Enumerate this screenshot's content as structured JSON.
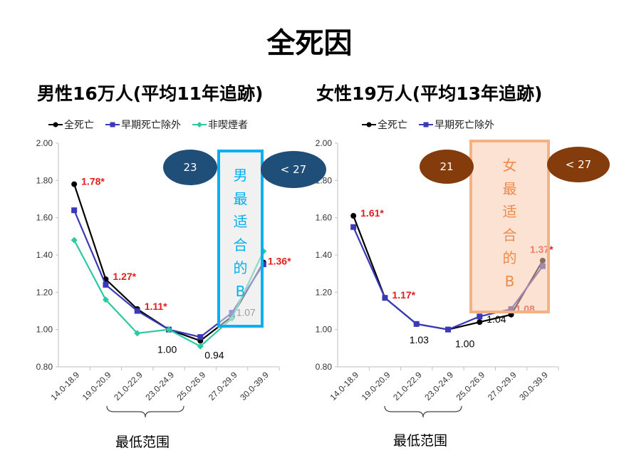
{
  "page_title": "全死因",
  "panels": [
    {
      "title": "男性16万人(平均11年追跡)"
    },
    {
      "title": "女性19万人(平均13年追跡)"
    }
  ],
  "footer": {
    "left": "最低范围",
    "right": "最低范围"
  },
  "overlays": {
    "male": {
      "bubble_left": "23",
      "bubble_right": "< 27",
      "box_chars": [
        "男",
        "最",
        "适",
        "合",
        "的",
        "B"
      ],
      "color": "#1a4a78",
      "box_color": "#00b0f0"
    },
    "female": {
      "bubble_left": "21",
      "bubble_right": "< 27",
      "box_chars": [
        "女",
        "最",
        "适",
        "合",
        "的",
        "B"
      ],
      "color": "#7a3a0c",
      "box_color": "#f4b183"
    }
  },
  "chart_data": [
    {
      "type": "line",
      "title": "男性16万人(平均11年追跡)",
      "categories": [
        "14.0-18.9",
        "19.0-20.9",
        "21.0-22.9",
        "23.0-24.9",
        "25.0-26.9",
        "27.0-29.9",
        "30.0-39.9"
      ],
      "ylim": [
        0.8,
        2.0
      ],
      "yticks": [
        "0.80",
        "1.00",
        "1.20",
        "1.40",
        "1.60",
        "1.80",
        "2.00"
      ],
      "legend_position": "top-left",
      "series": [
        {
          "name": "全死亡",
          "color": "#000000",
          "marker": "circle",
          "values": [
            1.78,
            1.27,
            1.11,
            1.0,
            0.94,
            1.07,
            1.36
          ]
        },
        {
          "name": "早期死亡除外",
          "color": "#3a3ab8",
          "marker": "square",
          "values": [
            1.64,
            1.24,
            1.1,
            1.0,
            0.96,
            1.09,
            1.35
          ]
        },
        {
          "name": "非喫煙者",
          "color": "#2dc9a3",
          "marker": "diamond",
          "values": [
            1.48,
            1.16,
            0.98,
            1.0,
            0.91,
            1.06,
            1.42
          ]
        }
      ],
      "data_labels": [
        {
          "index": 0,
          "value": 1.78,
          "text": "1.78*",
          "color": "#e02020",
          "bold": true
        },
        {
          "index": 1,
          "value": 1.27,
          "text": "1.27*",
          "color": "#e02020",
          "bold": true
        },
        {
          "index": 2,
          "value": 1.11,
          "text": "1.11*",
          "color": "#e02020",
          "bold": true
        },
        {
          "index": 3,
          "value": 1.0,
          "text": "1.00",
          "color": "#000000",
          "bold": false
        },
        {
          "index": 4,
          "value": 0.94,
          "text": "0.94",
          "color": "#000000",
          "bold": false
        },
        {
          "index": 5,
          "value": 1.07,
          "text": "1.07",
          "color": "#444444",
          "bold": false
        },
        {
          "index": 6,
          "value": 1.36,
          "text": "1.36*",
          "color": "#e02020",
          "bold": true
        }
      ]
    },
    {
      "type": "line",
      "title": "女性19万人(平均13年追跡)",
      "categories": [
        "14.0-18.9",
        "19.0-20.9",
        "21.0-22.9",
        "23.0-24.9",
        "25.0-26.9",
        "27.0-29.9",
        "30.0-39.9"
      ],
      "ylim": [
        0.8,
        2.0
      ],
      "yticks": [
        "0.80",
        "1.00",
        "1.20",
        "1.40",
        "1.60",
        "1.80",
        "2.00"
      ],
      "legend_position": "top-left",
      "series": [
        {
          "name": "全死亡",
          "color": "#000000",
          "marker": "circle",
          "values": [
            1.61,
            1.17,
            1.03,
            1.0,
            1.04,
            1.08,
            1.37
          ]
        },
        {
          "name": "早期死亡除外",
          "color": "#3a3ab8",
          "marker": "square",
          "values": [
            1.55,
            1.17,
            1.03,
            1.0,
            1.07,
            1.11,
            1.34
          ]
        }
      ],
      "data_labels": [
        {
          "index": 0,
          "value": 1.61,
          "text": "1.61*",
          "color": "#e02020",
          "bold": true
        },
        {
          "index": 1,
          "value": 1.17,
          "text": "1.17*",
          "color": "#e02020",
          "bold": true
        },
        {
          "index": 2,
          "value": 1.03,
          "text": "1.03",
          "color": "#000000",
          "bold": false
        },
        {
          "index": 3,
          "value": 1.0,
          "text": "1.00",
          "color": "#000000",
          "bold": false
        },
        {
          "index": 4,
          "value": 1.04,
          "text": "1.04",
          "color": "#000000",
          "bold": false
        },
        {
          "index": 5,
          "value": 1.08,
          "text": "1.08",
          "color": "#e02020",
          "bold": true
        },
        {
          "index": 6,
          "value": 1.37,
          "text": "1.37*",
          "color": "#e02020",
          "bold": true
        }
      ]
    }
  ]
}
